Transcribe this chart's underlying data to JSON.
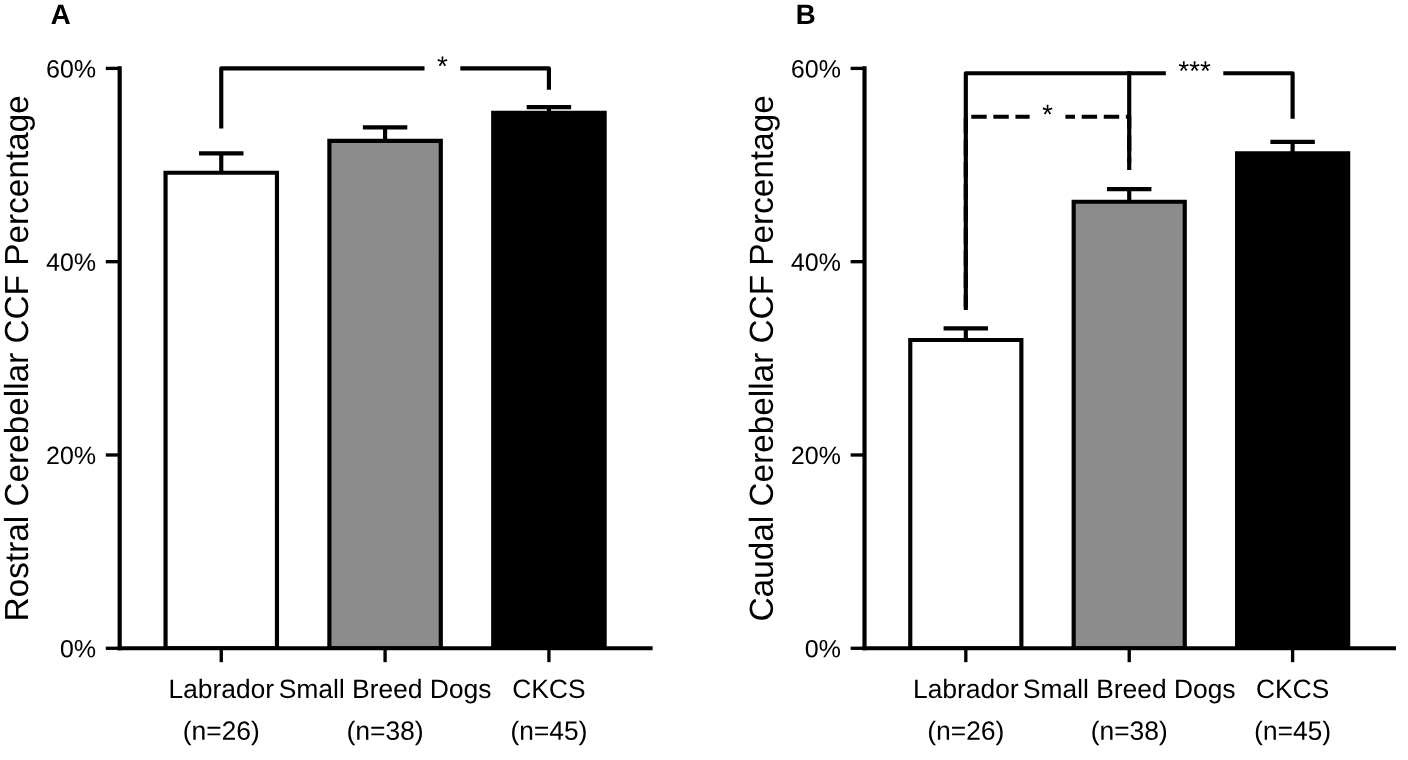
{
  "chart_data": [
    {
      "type": "bar",
      "title": "A",
      "ylabel": "Rostral Cerebellar CCF Percentage",
      "categories": [
        "Labrador\n(n=26)",
        "Small Breed Dogs\n(n=38)",
        "CKCS\n(n=45)"
      ],
      "values": [
        49.2,
        52.5,
        55.4
      ],
      "errors": [
        2.0,
        1.4,
        0.6
      ],
      "colors": [
        "#ffffff",
        "#8c8c8c",
        "#000000"
      ],
      "ylim": [
        0,
        60
      ],
      "yticks": [
        {
          "value": 0,
          "label": "0%"
        },
        {
          "value": 20,
          "label": "20%"
        },
        {
          "value": 40,
          "label": "40%"
        },
        {
          "value": 60,
          "label": "60%"
        }
      ],
      "grid": false,
      "annotations": [
        "*"
      ]
    },
    {
      "type": "bar",
      "title": "B",
      "ylabel": "Caudal Cerebellar CCF Percentage",
      "categories": [
        "Labrador\n(n=26)",
        "Small Breed Dogs\n(n=38)",
        "CKCS\n(n=45)"
      ],
      "values": [
        31.9,
        46.2,
        51.2
      ],
      "errors": [
        1.2,
        1.3,
        1.2
      ],
      "colors": [
        "#ffffff",
        "#8c8c8c",
        "#000000"
      ],
      "ylim": [
        0,
        60
      ],
      "yticks": [
        {
          "value": 0,
          "label": "0%"
        },
        {
          "value": 20,
          "label": "20%"
        },
        {
          "value": 40,
          "label": "40%"
        },
        {
          "value": 60,
          "label": "60%"
        }
      ],
      "grid": false,
      "annotations": [
        "*",
        "***"
      ]
    }
  ]
}
